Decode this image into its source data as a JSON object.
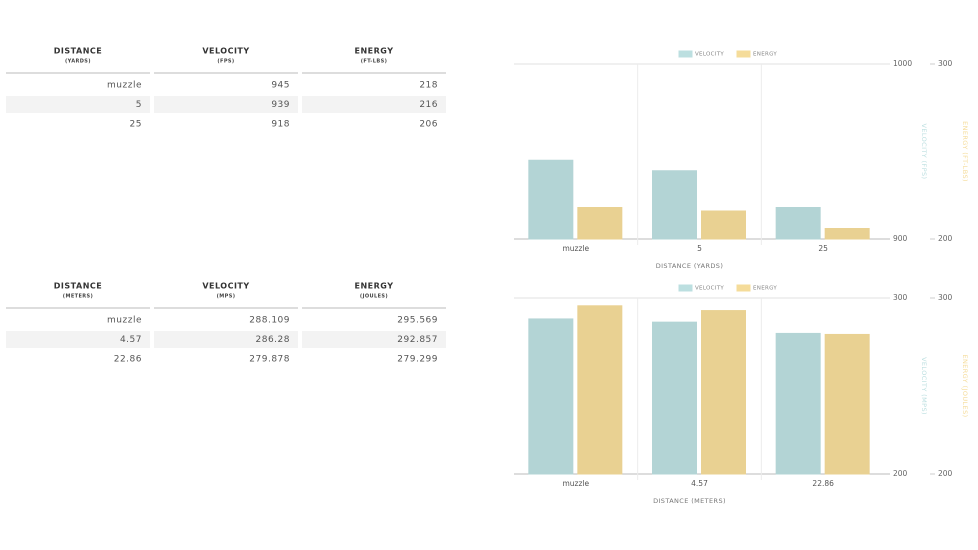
{
  "tables": [
    {
      "columns": [
        {
          "title": "DISTANCE",
          "unit": "(YARDS)"
        },
        {
          "title": "VELOCITY",
          "unit": "(FPS)"
        },
        {
          "title": "ENERGY",
          "unit": "(FT-LBS)"
        }
      ],
      "rows": [
        [
          "muzzle",
          945,
          218
        ],
        [
          5,
          939,
          216
        ],
        [
          25,
          918,
          206
        ]
      ]
    },
    {
      "columns": [
        {
          "title": "DISTANCE",
          "unit": "(METERS)"
        },
        {
          "title": "VELOCITY",
          "unit": "(MPS)"
        },
        {
          "title": "ENERGY",
          "unit": "(JOULES)"
        }
      ],
      "rows": [
        [
          "muzzle",
          288.109,
          295.569
        ],
        [
          4.57,
          286.28,
          292.857
        ],
        [
          22.86,
          279.878,
          279.299
        ]
      ]
    }
  ],
  "chart_data": [
    {
      "type": "bar",
      "x_label": "DISTANCE (YARDS)",
      "y_label": "VELOCITY (FPS)",
      "y2_label": "ENERGY (FT-LBS)",
      "categories": [
        "muzzle",
        "5",
        "25"
      ],
      "series": [
        {
          "name": "VELOCITY",
          "color": "#bcdfe0",
          "values": [
            945,
            939,
            918
          ]
        },
        {
          "name": "ENERGY",
          "color": "#f5dc9a",
          "values": [
            218,
            216,
            206
          ],
          "axis": "y2"
        }
      ],
      "ylim": [
        900,
        1000
      ],
      "yticks": [
        900,
        1000
      ],
      "y2lim": [
        200,
        300
      ],
      "y2ticks": [
        200,
        300
      ],
      "grid": true,
      "legend": "top"
    },
    {
      "type": "bar",
      "x_label": "DISTANCE (METERS)",
      "y_label": "VELOCITY (MPS)",
      "y2_label": "ENERGY (JOULES)",
      "categories": [
        "muzzle",
        "4.57",
        "22.86"
      ],
      "series": [
        {
          "name": "VELOCITY",
          "color": "#bcdfe0",
          "values": [
            288.109,
            286.28,
            279.878
          ]
        },
        {
          "name": "ENERGY",
          "color": "#f5dc9a",
          "values": [
            295.569,
            292.857,
            279.299
          ],
          "axis": "y2"
        }
      ],
      "ylim": [
        200,
        300
      ],
      "yticks": [
        200,
        300
      ],
      "y2lim": [
        200,
        300
      ],
      "y2ticks": [
        200,
        300
      ],
      "grid": true,
      "legend": "top"
    }
  ]
}
